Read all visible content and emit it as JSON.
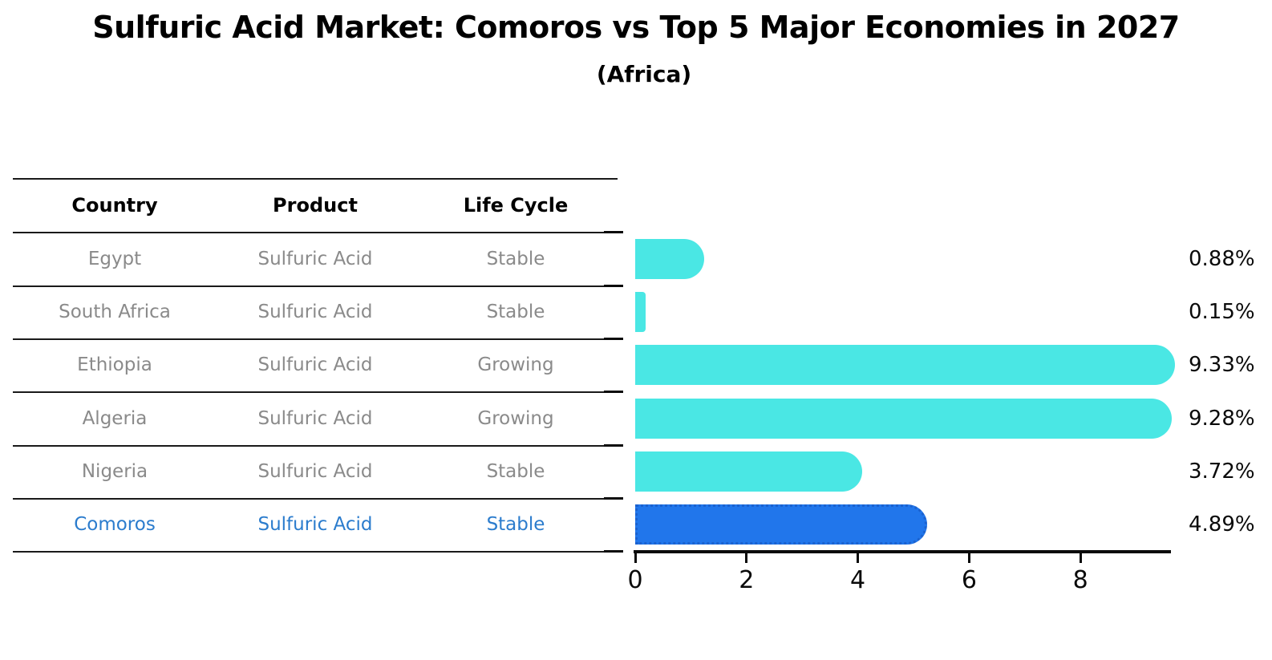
{
  "title": "Sulfuric Acid Market: Comoros vs Top 5 Major Economies in 2027",
  "subtitle": "(Africa)",
  "table": {
    "headers": [
      "Country",
      "Product",
      "Life Cycle"
    ],
    "rows": [
      {
        "country": "Egypt",
        "product": "Sulfuric Acid",
        "life_cycle": "Stable",
        "highlight": false
      },
      {
        "country": "South Africa",
        "product": "Sulfuric Acid",
        "life_cycle": "Stable",
        "highlight": false
      },
      {
        "country": "Ethiopia",
        "product": "Sulfuric Acid",
        "life_cycle": "Growing",
        "highlight": false
      },
      {
        "country": "Algeria",
        "product": "Sulfuric Acid",
        "life_cycle": "Growing",
        "highlight": false
      },
      {
        "country": "Nigeria",
        "product": "Sulfuric Acid",
        "life_cycle": "Stable",
        "highlight": false
      },
      {
        "country": "Comoros",
        "product": "Sulfuric Acid",
        "life_cycle": "Stable",
        "highlight": true
      }
    ]
  },
  "chart_data": {
    "type": "bar",
    "orientation": "horizontal",
    "title": "Sulfuric Acid Market: Comoros vs Top 5 Major Economies in 2027",
    "subtitle": "(Africa)",
    "categories": [
      "Egypt",
      "South Africa",
      "Ethiopia",
      "Algeria",
      "Nigeria",
      "Comoros"
    ],
    "values": [
      0.88,
      0.15,
      9.33,
      9.28,
      3.72,
      4.89
    ],
    "value_labels": [
      "0.88%",
      "0.15%",
      "9.33%",
      "9.28%",
      "3.72%",
      "4.89%"
    ],
    "unit": "%",
    "x_ticks": [
      "0",
      "2",
      "4",
      "6",
      "8"
    ],
    "xlim": [
      0,
      9.65
    ],
    "grid": false,
    "legend": "none",
    "highlight_index": 5,
    "colors": {
      "bar": "#4AE7E4",
      "highlight_bar": "#2176EB",
      "highlight_bar_border": "#1B62CF",
      "row_text": "#8a8a8a",
      "highlight_row_text": "#2B7CCD",
      "axis": "#0a0a0a",
      "header_text": "#000000"
    }
  }
}
